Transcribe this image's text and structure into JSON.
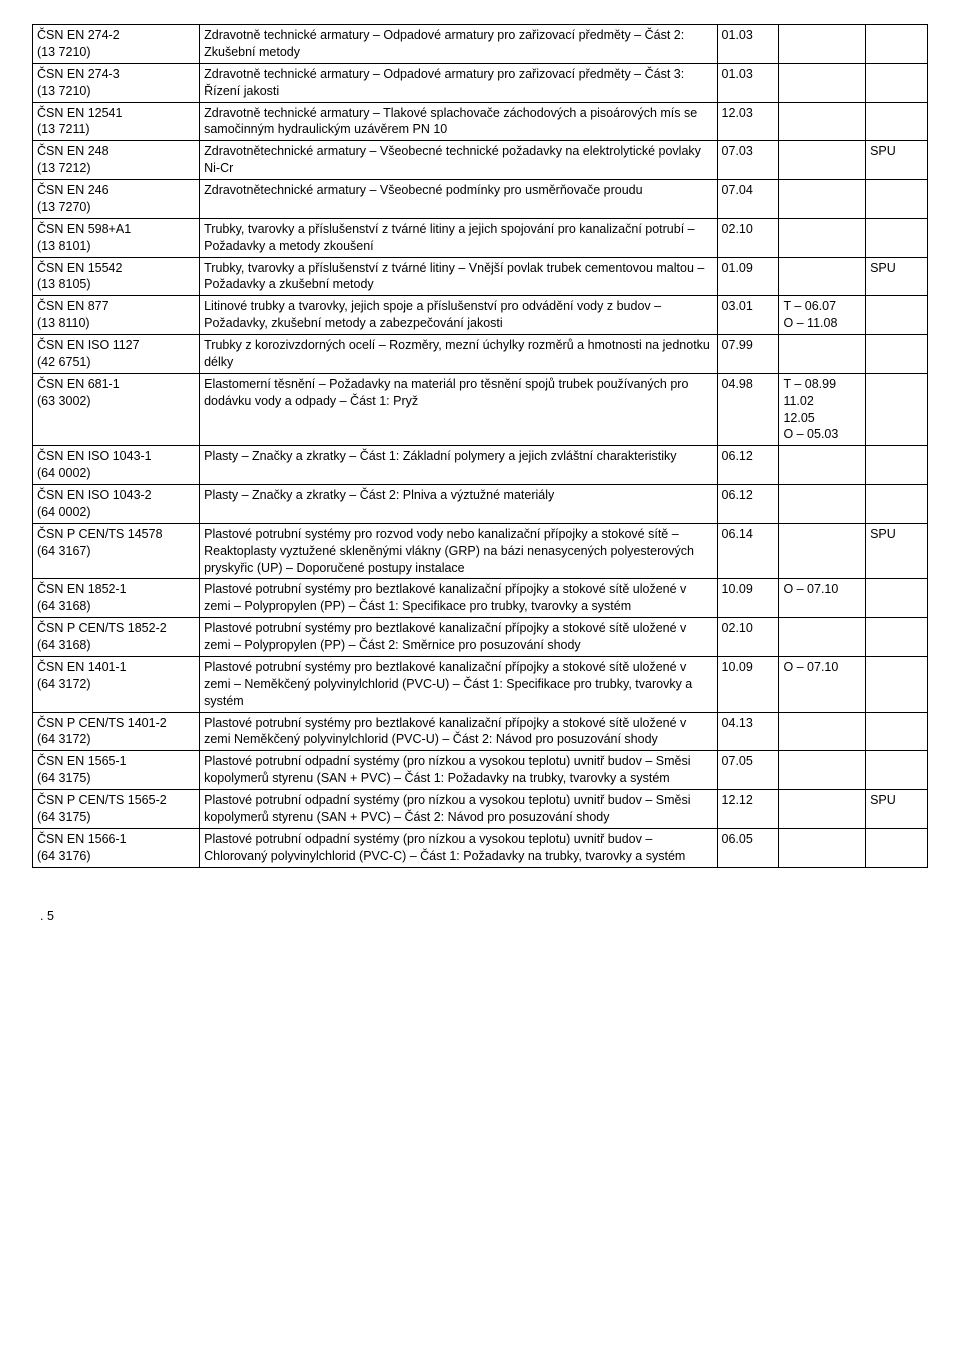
{
  "pageNumber": ".  5",
  "rows": [
    {
      "code": "ČSN EN 274-2\n(13 7210)",
      "desc": "Zdravotně technické armatury – Odpadové armatury pro zařizovací předměty – Část 2: Zkušební metody",
      "col3": "01.03",
      "col4": "",
      "col5": ""
    },
    {
      "code": "ČSN EN 274-3\n(13 7210)",
      "desc": "Zdravotně technické armatury – Odpadové armatury pro zařizovací předměty – Část 3: Řízení jakosti",
      "col3": "01.03",
      "col4": "",
      "col5": ""
    },
    {
      "code": "ČSN EN 12541\n(13 7211)",
      "desc": "Zdravotně technické armatury – Tlakové splachovače záchodových a pisoárových mís se samočinným hydraulickým uzávěrem PN 10",
      "col3": "12.03",
      "col4": "",
      "col5": ""
    },
    {
      "code": "ČSN EN 248\n(13 7212)",
      "desc": "Zdravotnětechnické armatury – Všeobecné technické požadavky na elektrolytické povlaky Ni-Cr",
      "col3": "07.03",
      "col4": "",
      "col5": "SPU"
    },
    {
      "code": "ČSN EN 246\n(13 7270)",
      "desc": "Zdravotnětechnické armatury – Všeobecné podmínky pro usměrňovače proudu",
      "col3": "07.04",
      "col4": "",
      "col5": ""
    },
    {
      "code": "ČSN EN 598+A1\n(13 8101)",
      "desc": "Trubky, tvarovky a příslušenství z tvárné litiny a jejich spojování pro kanalizační potrubí – Požadavky a metody zkoušení",
      "col3": "02.10",
      "col4": "",
      "col5": ""
    },
    {
      "code": "ČSN EN 15542\n(13 8105)",
      "desc": "Trubky, tvarovky a příslušenství z tvárné litiny – Vnější povlak trubek cementovou maltou – Požadavky a zkušební metody",
      "col3": "01.09",
      "col4": "",
      "col5": "SPU"
    },
    {
      "code": "ČSN EN 877\n(13 8110)",
      "desc": "Litinové trubky a tvarovky, jejich spoje a příslušenství pro odvádění vody z budov – Požadavky, zkušební metody a zabezpečování jakosti",
      "col3": "03.01",
      "col4": "T – 06.07\nO – 11.08",
      "col5": ""
    },
    {
      "code": "ČSN EN ISO 1127\n(42 6751)",
      "desc": "Trubky z korozivzdorných ocelí – Rozměry, mezní úchylky rozměrů a hmotnosti na jednotku délky",
      "col3": "07.99",
      "col4": "",
      "col5": ""
    },
    {
      "code": "ČSN EN 681-1\n(63 3002)",
      "desc": "Elastomerní těsnění – Požadavky na materiál pro těsnění spojů trubek používaných pro dodávku vody a odpady – Část 1: Pryž",
      "col3": "04.98",
      "col4": "T – 08.99\n      11.02\n      12.05\nO – 05.03",
      "col5": ""
    },
    {
      "code": "ČSN EN ISO 1043-1\n(64 0002)",
      "desc": "Plasty – Značky a zkratky – Část 1: Základní polymery a jejich zvláštní charakteristiky",
      "col3": "06.12",
      "col4": "",
      "col5": ""
    },
    {
      "code": "ČSN EN ISO 1043-2\n(64 0002)",
      "desc": "Plasty – Značky a zkratky – Část 2: Plniva a výztužné materiály",
      "col3": "06.12",
      "col4": "",
      "col5": ""
    },
    {
      "code": "ČSN P CEN/TS 14578\n(64 3167)",
      "desc": "Plastové potrubní systémy pro rozvod vody nebo kanalizační přípojky a stokové sítě – Reaktoplasty vyztužené skleněnými vlákny (GRP) na bázi nenasycených polyesterových pryskyřic (UP) – Doporučené postupy instalace",
      "col3": "06.14",
      "col4": "",
      "col5": "SPU"
    },
    {
      "code": "ČSN EN 1852-1\n(64 3168)",
      "desc": "Plastové potrubní systémy pro beztlakové kanalizační přípojky a stokové sítě uložené v zemi – Polypropylen (PP) – Část 1: Specifikace pro trubky, tvarovky a systém",
      "col3": "10.09",
      "col4": "O – 07.10",
      "col5": ""
    },
    {
      "code": "ČSN P CEN/TS 1852-2\n(64 3168)",
      "desc": "Plastové potrubní systémy pro beztlakové kanalizační přípojky a stokové sítě uložené v zemi – Polypropylen (PP) – Část 2: Směrnice pro posuzování shody",
      "col3": "02.10",
      "col4": "",
      "col5": ""
    },
    {
      "code": "ČSN EN 1401-1\n(64 3172)",
      "desc": "Plastové potrubní systémy pro beztlakové kanalizační přípojky a stokové sítě uložené v zemi – Neměkčený polyvinylchlorid (PVC-U) – Část 1: Specifikace pro trubky, tvarovky a systém",
      "col3": "10.09",
      "col4": "O – 07.10",
      "col5": ""
    },
    {
      "code": "ČSN P CEN/TS 1401-2\n(64 3172)",
      "desc": "Plastové potrubní systémy pro beztlakové kanalizační přípojky a stokové sítě uložené v zemi  Neměkčený polyvinylchlorid (PVC-U) – Část 2: Návod pro posuzování shody",
      "col3": "04.13",
      "col4": "",
      "col5": ""
    },
    {
      "code": "ČSN EN 1565-1\n(64 3175)",
      "desc": "Plastové potrubní odpadní systémy (pro nízkou a vysokou teplotu) uvnitř budov – Směsi kopolymerů styrenu (SAN + PVC) – Část 1: Požadavky na trubky, tvarovky a systém",
      "col3": "07.05",
      "col4": "",
      "col5": ""
    },
    {
      "code": "ČSN P CEN/TS 1565-2\n(64 3175)",
      "desc": "Plastové potrubní odpadní systémy (pro nízkou a vysokou teplotu) uvnitř budov – Směsi kopolymerů styrenu (SAN + PVC) – Část 2: Návod pro posuzování shody",
      "col3": "12.12",
      "col4": "",
      "col5": "SPU"
    },
    {
      "code": "ČSN EN 1566-1\n(64 3176)",
      "desc": "Plastové potrubní odpadní systémy (pro nízkou a vysokou teplotu) uvnitř budov – Chlorovaný polyvinylchlorid (PVC-C) – Část 1: Požadavky na trubky, tvarovky a systém",
      "col3": "06.05",
      "col4": "",
      "col5": ""
    }
  ]
}
